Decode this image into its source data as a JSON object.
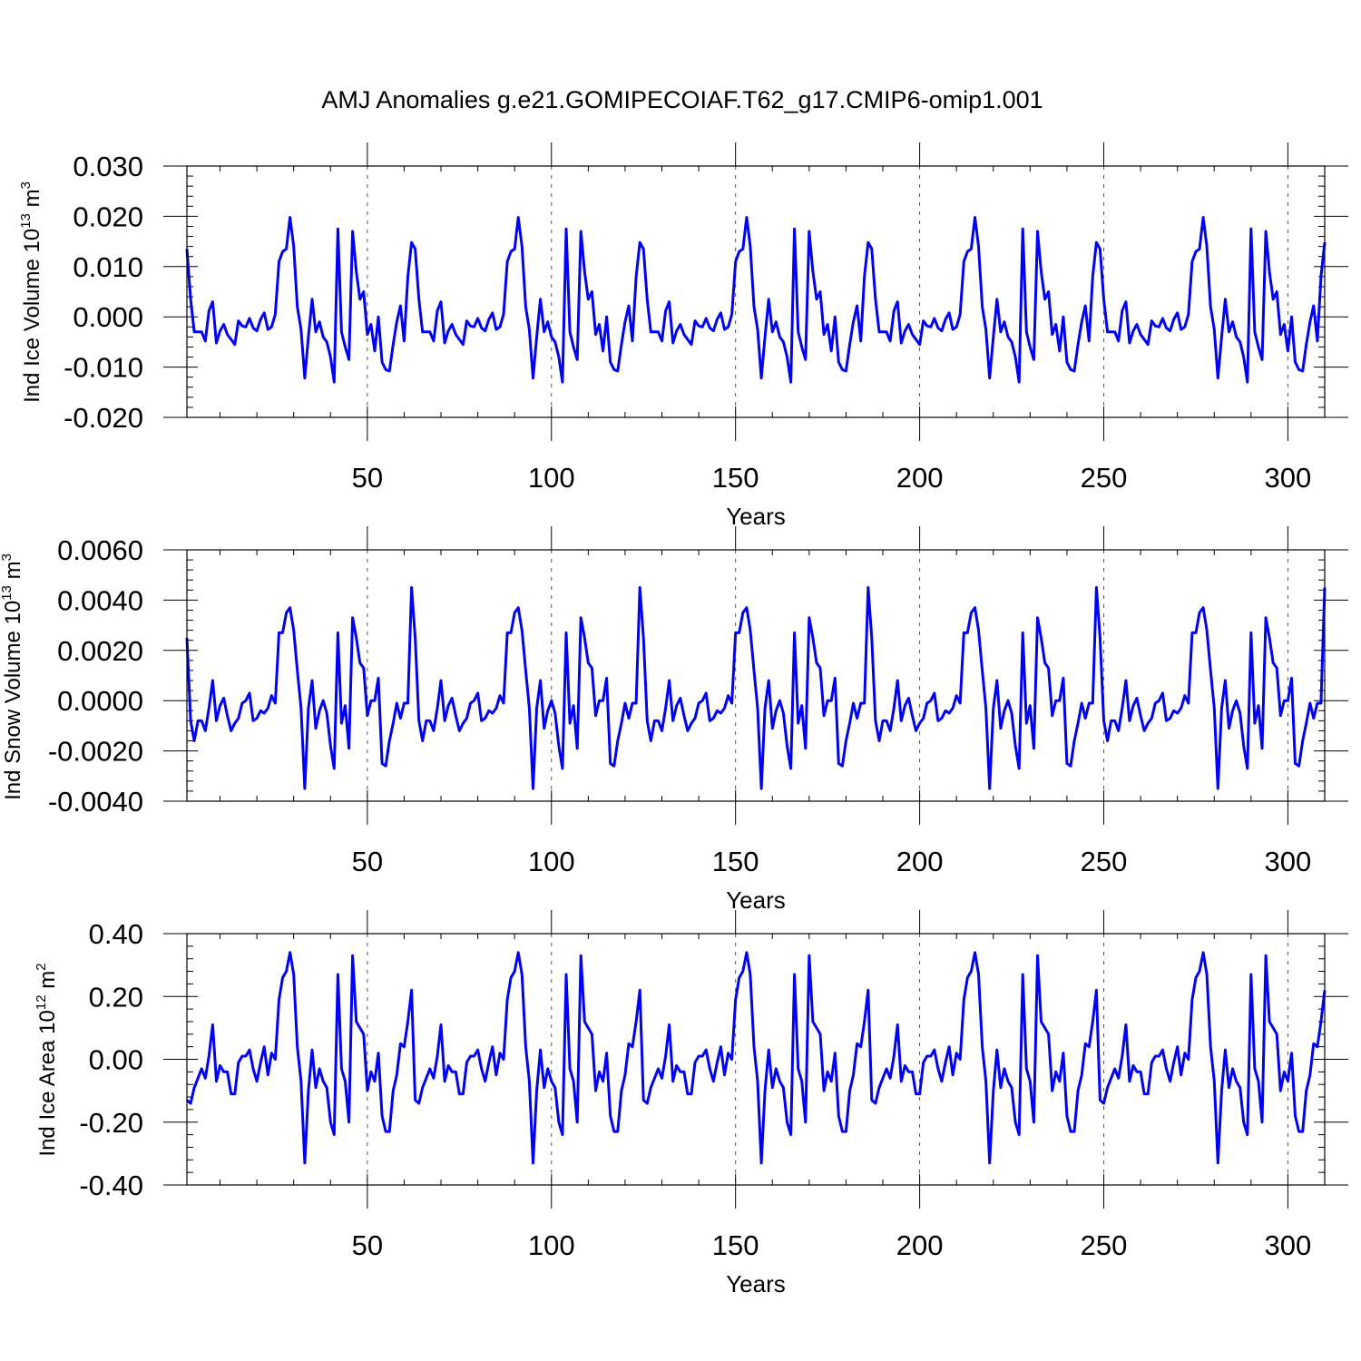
{
  "title": "AMJ Anomalies g.e21.GOMIPECOIAF.T62_g17.CMIP6-omip1.001",
  "line_color": "#0000ff",
  "grid_color": "#555555",
  "chart_data": [
    {
      "type": "line",
      "name": "ice-volume",
      "ylabel": {
        "prefix": "Ind Ice Volume 10",
        "exp1": "13",
        "unit": " m",
        "exp2": "3"
      },
      "xlabel": "Years",
      "xlim": [
        1,
        310
      ],
      "ylim": [
        -0.02,
        0.03
      ],
      "xticks": [
        "50",
        "100",
        "150",
        "200",
        "250",
        "300"
      ],
      "xtick_values": [
        50,
        100,
        150,
        200,
        250,
        300
      ],
      "yticks": [
        "0.030",
        "0.020",
        "0.010",
        "0.000",
        "-0.010",
        "-0.020"
      ],
      "ytick_values": [
        0.03,
        0.02,
        0.01,
        0.0,
        -0.01,
        -0.02
      ],
      "cycle_period": 62,
      "cycle_values": [
        0.0135,
        0.0035,
        -0.003,
        -0.003,
        -0.003,
        -0.0048,
        0.0012,
        0.003,
        -0.0052,
        -0.0028,
        -0.0015,
        -0.0035,
        -0.0045,
        -0.0055,
        -0.0008,
        -0.0018,
        -0.002,
        -0.0003,
        -0.0022,
        -0.0028,
        -0.0005,
        0.0008,
        -0.0025,
        -0.002,
        0.0005,
        0.011,
        0.013,
        0.0135,
        0.0198,
        0.014,
        0.002,
        -0.0025,
        -0.0122,
        -0.004,
        0.0035,
        -0.003,
        -0.001,
        -0.004,
        -0.005,
        -0.008,
        -0.013,
        0.0175,
        -0.003,
        -0.006,
        -0.0085,
        0.017,
        0.009,
        0.0035,
        0.005,
        -0.0035,
        -0.0015,
        -0.0068,
        0.0,
        -0.009,
        -0.0105,
        -0.0108,
        -0.0055,
        -0.001,
        0.0022,
        -0.0048,
        0.008,
        0.0148
      ],
      "extra_values": [
        0.0145
      ]
    },
    {
      "type": "line",
      "name": "snow-volume",
      "ylabel": {
        "prefix": "Ind Snow Volume 10",
        "exp1": "13",
        "unit": " m",
        "exp2": "3"
      },
      "xlabel": "Years",
      "xlim": [
        1,
        310
      ],
      "ylim": [
        -0.004,
        0.006
      ],
      "xticks": [
        "50",
        "100",
        "150",
        "200",
        "250",
        "300"
      ],
      "xtick_values": [
        50,
        100,
        150,
        200,
        250,
        300
      ],
      "yticks": [
        "0.0060",
        "0.0040",
        "0.0020",
        "0.0000",
        "-0.0020",
        "-0.0040"
      ],
      "ytick_values": [
        0.006,
        0.004,
        0.002,
        0.0,
        -0.002,
        -0.004
      ],
      "cycle_period": 62,
      "cycle_values": [
        0.0025,
        -0.0008,
        -0.0016,
        -0.0008,
        -0.0008,
        -0.0012,
        -0.0003,
        0.0008,
        -0.0008,
        -0.0002,
        0.0001,
        -0.0006,
        -0.0012,
        -0.0009,
        -0.0007,
        -0.0001,
        0.0,
        0.0003,
        -0.0008,
        -0.0007,
        -0.0004,
        -0.0005,
        -0.0003,
        0.0002,
        -0.0001,
        0.0027,
        0.0027,
        0.0035,
        0.0037,
        0.0028,
        0.0012,
        -0.0003,
        -0.0035,
        -0.0003,
        0.0008,
        -0.0011,
        -0.0004,
        0.0,
        -0.0005,
        -0.0018,
        -0.0027,
        0.0027,
        -0.0009,
        -0.0002,
        -0.0019,
        0.0033,
        0.0025,
        0.0015,
        0.0013,
        -0.0006,
        0.0,
        0.0,
        0.0009,
        -0.0025,
        -0.0026,
        -0.0016,
        -0.0009,
        -0.0001,
        -0.0007,
        -0.0001,
        -0.0001,
        0.0045
      ],
      "extra_values": [
        0.0043
      ]
    },
    {
      "type": "line",
      "name": "ice-area",
      "ylabel": {
        "prefix": "Ind Ice Area 10",
        "exp1": "12",
        "unit": " m",
        "exp2": "2"
      },
      "xlabel": "Years",
      "xlim": [
        1,
        310
      ],
      "ylim": [
        -0.4,
        0.4
      ],
      "xticks": [
        "50",
        "100",
        "150",
        "200",
        "250",
        "300"
      ],
      "xtick_values": [
        50,
        100,
        150,
        200,
        250,
        300
      ],
      "yticks": [
        "0.40",
        "0.20",
        "0.00",
        "-0.20",
        "-0.40"
      ],
      "ytick_values": [
        0.4,
        0.2,
        0.0,
        -0.2,
        -0.4
      ],
      "cycle_period": 62,
      "cycle_values": [
        -0.13,
        -0.14,
        -0.09,
        -0.06,
        -0.03,
        -0.06,
        0.01,
        0.11,
        -0.07,
        -0.02,
        -0.04,
        -0.04,
        -0.11,
        -0.11,
        -0.01,
        0.01,
        0.01,
        0.03,
        -0.03,
        -0.07,
        -0.01,
        0.04,
        -0.05,
        0.02,
        0.0,
        0.19,
        0.26,
        0.28,
        0.34,
        0.27,
        0.04,
        -0.07,
        -0.33,
        -0.1,
        0.03,
        -0.09,
        -0.03,
        -0.07,
        -0.09,
        -0.2,
        -0.24,
        0.27,
        -0.03,
        -0.07,
        -0.2,
        0.33,
        0.12,
        0.1,
        0.08,
        -0.1,
        -0.04,
        -0.07,
        0.02,
        -0.18,
        -0.23,
        -0.23,
        -0.1,
        -0.05,
        0.05,
        0.04,
        0.12,
        0.22
      ],
      "extra_values": [
        0.21
      ]
    }
  ]
}
